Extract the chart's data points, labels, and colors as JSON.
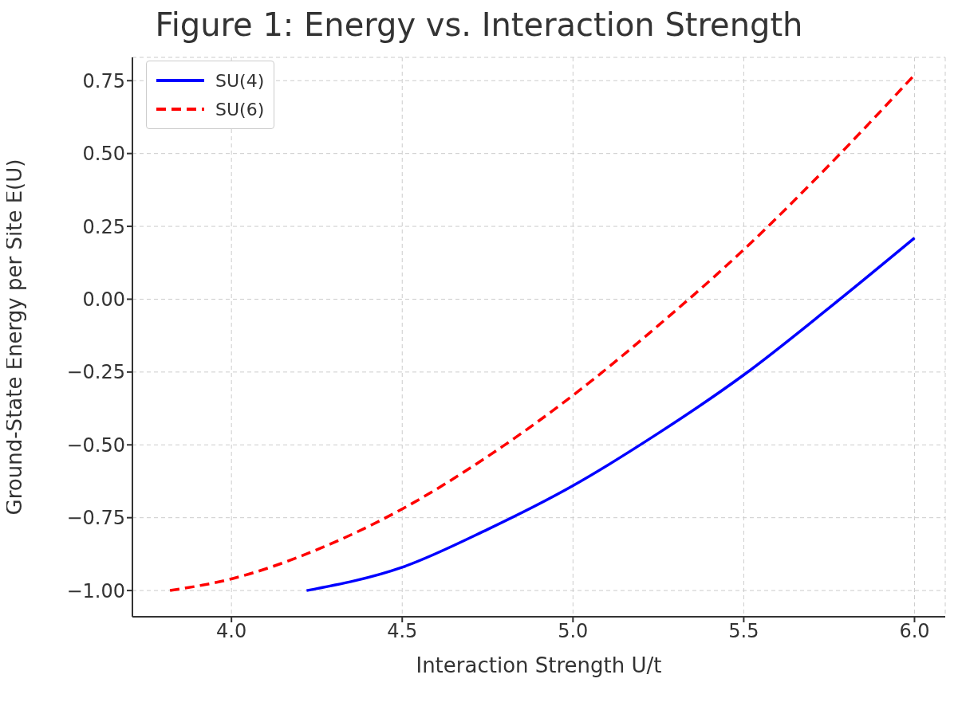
{
  "chart_data": {
    "type": "line",
    "title": "Figure 1: Energy vs. Interaction Strength",
    "xlabel": "Interaction Strength U/t",
    "ylabel": "Ground-State Energy per Site E(U)",
    "xlim": [
      3.71,
      6.09
    ],
    "ylim": [
      -1.09,
      0.83
    ],
    "xticks": [
      {
        "value": 4,
        "label": "4.0"
      },
      {
        "value": 4.5,
        "label": "4.5"
      },
      {
        "value": 5,
        "label": "5.0"
      },
      {
        "value": 5.5,
        "label": "5.5"
      },
      {
        "value": 6,
        "label": "6.0"
      }
    ],
    "yticks": [
      {
        "value": -1,
        "label": "−1.00"
      },
      {
        "value": -0.75,
        "label": "−0.75"
      },
      {
        "value": -0.5,
        "label": "−0.50"
      },
      {
        "value": -0.25,
        "label": "−0.25"
      },
      {
        "value": 0,
        "label": "0.00"
      },
      {
        "value": 0.25,
        "label": "0.25"
      },
      {
        "value": 0.5,
        "label": "0.50"
      },
      {
        "value": 0.75,
        "label": "0.75"
      }
    ],
    "grid": true,
    "legend": "top left",
    "series": [
      {
        "name": "SU(4)",
        "color": "#0000ff",
        "line_style": "solid",
        "x": [
          4.22,
          4.5,
          4.75,
          5.0,
          5.25,
          5.5,
          5.75,
          6.0
        ],
        "values": [
          -1.0,
          -0.92,
          -0.79,
          -0.64,
          -0.46,
          -0.26,
          -0.03,
          0.21
        ]
      },
      {
        "name": "SU(6)",
        "color": "#ff0000",
        "line_style": "dashed",
        "x": [
          3.82,
          4.0,
          4.25,
          4.5,
          4.75,
          5.0,
          5.25,
          5.5,
          5.75,
          6.0
        ],
        "values": [
          -1.0,
          -0.96,
          -0.86,
          -0.72,
          -0.54,
          -0.33,
          -0.09,
          0.17,
          0.46,
          0.77
        ]
      }
    ]
  }
}
